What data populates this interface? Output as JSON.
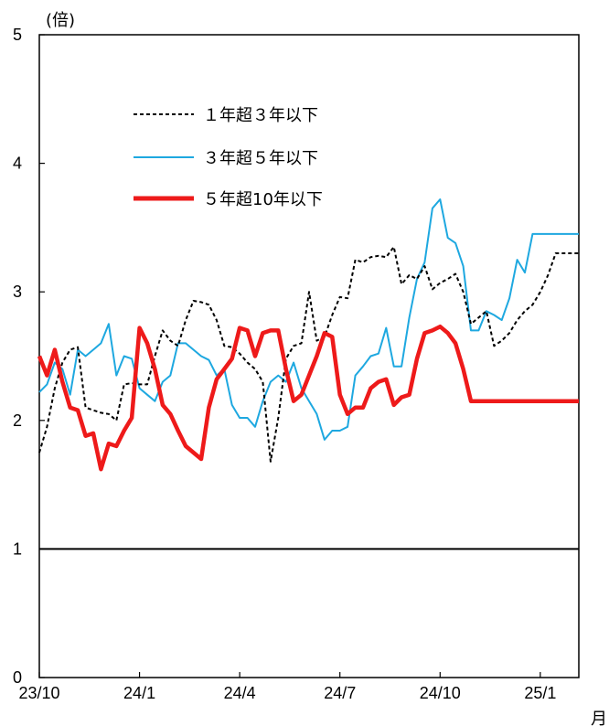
{
  "chart_data": {
    "type": "line",
    "unit_label": "(倍)",
    "x_unit_label": "月",
    "y_ticks": [
      "0",
      "1",
      "2",
      "3",
      "4",
      "5"
    ],
    "ylim": [
      0,
      5
    ],
    "x_tick_labels": [
      "23/10",
      "24/1",
      "24/4",
      "24/7",
      "24/10",
      "25/1"
    ],
    "x_tick_positions": [
      0,
      13,
      26,
      39,
      52,
      65
    ],
    "xlim": [
      0,
      70
    ],
    "reference_line": 1,
    "grid": false,
    "legend_position": "top-left",
    "series": [
      {
        "name": "１年超３年以下",
        "color": "#000000",
        "style": "dashed",
        "x": [
          0,
          1,
          2,
          3,
          4,
          5,
          6,
          7,
          8,
          9,
          10,
          11,
          12,
          13,
          14,
          15,
          16,
          17,
          18,
          19,
          20,
          21,
          22,
          23,
          24,
          25,
          26,
          27,
          28,
          29,
          30,
          31,
          32,
          33,
          34,
          35,
          36,
          37,
          38,
          39,
          40,
          41,
          42,
          43,
          44,
          45,
          46,
          47,
          48,
          49,
          50,
          51,
          52,
          53,
          54,
          55,
          56,
          57,
          58,
          59,
          60,
          61,
          62,
          63,
          64,
          65,
          66,
          67,
          68,
          69,
          70
        ],
        "values": [
          1.75,
          1.95,
          2.25,
          2.45,
          2.55,
          2.57,
          2.1,
          2.08,
          2.06,
          2.05,
          2.0,
          2.28,
          2.29,
          2.28,
          2.28,
          2.5,
          2.7,
          2.62,
          2.58,
          2.78,
          2.93,
          2.92,
          2.9,
          2.78,
          2.58,
          2.57,
          2.52,
          2.45,
          2.4,
          2.3,
          1.68,
          2.02,
          2.48,
          2.58,
          2.6,
          3.0,
          2.62,
          2.65,
          2.82,
          2.96,
          2.95,
          3.25,
          3.23,
          3.27,
          3.28,
          3.27,
          3.35,
          3.06,
          3.13,
          3.1,
          3.2,
          3.02,
          3.07,
          3.1,
          3.14,
          3.0,
          2.75,
          2.8,
          2.85,
          2.58,
          2.62,
          2.68,
          2.78,
          2.85,
          2.9,
          3.0,
          3.13,
          3.3,
          3.3,
          3.3,
          3.3
        ]
      },
      {
        "name": "３年超５年以下",
        "color": "#1EA8E0",
        "style": "solid",
        "x": [
          0,
          1,
          2,
          3,
          4,
          5,
          6,
          7,
          8,
          9,
          10,
          11,
          12,
          13,
          14,
          15,
          16,
          17,
          18,
          19,
          20,
          21,
          22,
          23,
          24,
          25,
          26,
          27,
          28,
          29,
          30,
          31,
          32,
          33,
          34,
          35,
          36,
          37,
          38,
          39,
          40,
          41,
          42,
          43,
          44,
          45,
          46,
          47,
          48,
          49,
          50,
          51,
          52,
          53,
          54,
          55,
          56,
          57,
          58,
          59,
          60,
          61,
          62,
          63,
          64,
          65,
          66,
          67,
          68,
          69,
          70
        ],
        "values": [
          2.22,
          2.28,
          2.45,
          2.4,
          2.2,
          2.55,
          2.5,
          2.55,
          2.6,
          2.75,
          2.35,
          2.5,
          2.48,
          2.25,
          2.2,
          2.15,
          2.3,
          2.35,
          2.6,
          2.6,
          2.55,
          2.5,
          2.47,
          2.35,
          2.4,
          2.12,
          2.02,
          2.02,
          1.95,
          2.15,
          2.3,
          2.35,
          2.3,
          2.45,
          2.25,
          2.15,
          2.05,
          1.85,
          1.92,
          1.92,
          1.95,
          2.35,
          2.42,
          2.5,
          2.52,
          2.72,
          2.42,
          2.42,
          2.8,
          3.1,
          3.23,
          3.65,
          3.72,
          3.42,
          3.38,
          3.2,
          2.7,
          2.7,
          2.85,
          2.82,
          2.78,
          2.95,
          3.25,
          3.15,
          3.45,
          3.45,
          3.45,
          3.45,
          3.45,
          3.45,
          3.45
        ]
      },
      {
        "name": "５年超10年以下",
        "color": "#EE1A1A",
        "style": "thick",
        "x": [
          0,
          1,
          2,
          3,
          4,
          5,
          6,
          7,
          8,
          9,
          10,
          11,
          12,
          13,
          14,
          15,
          16,
          17,
          18,
          19,
          20,
          21,
          22,
          23,
          24,
          25,
          26,
          27,
          28,
          29,
          30,
          31,
          32,
          33,
          34,
          35,
          36,
          37,
          38,
          39,
          40,
          41,
          42,
          43,
          44,
          45,
          46,
          47,
          48,
          49,
          50,
          51,
          52,
          53,
          54,
          55,
          56,
          57,
          58,
          59,
          60,
          61,
          62,
          63,
          64,
          65,
          66,
          67,
          68,
          69,
          70
        ],
        "values": [
          2.5,
          2.35,
          2.55,
          2.3,
          2.1,
          2.08,
          1.88,
          1.9,
          1.62,
          1.82,
          1.8,
          1.92,
          2.02,
          2.72,
          2.6,
          2.4,
          2.12,
          2.05,
          1.92,
          1.8,
          1.75,
          1.7,
          2.1,
          2.32,
          2.4,
          2.48,
          2.72,
          2.7,
          2.5,
          2.68,
          2.7,
          2.7,
          2.4,
          2.15,
          2.2,
          2.35,
          2.5,
          2.68,
          2.65,
          2.2,
          2.05,
          2.1,
          2.1,
          2.25,
          2.3,
          2.32,
          2.12,
          2.18,
          2.2,
          2.48,
          2.68,
          2.7,
          2.73,
          2.68,
          2.6,
          2.4,
          2.15,
          2.15,
          2.15,
          2.15,
          2.15,
          2.15,
          2.15,
          2.15,
          2.15,
          2.15,
          2.15,
          2.15,
          2.15,
          2.15,
          2.15
        ]
      }
    ]
  }
}
